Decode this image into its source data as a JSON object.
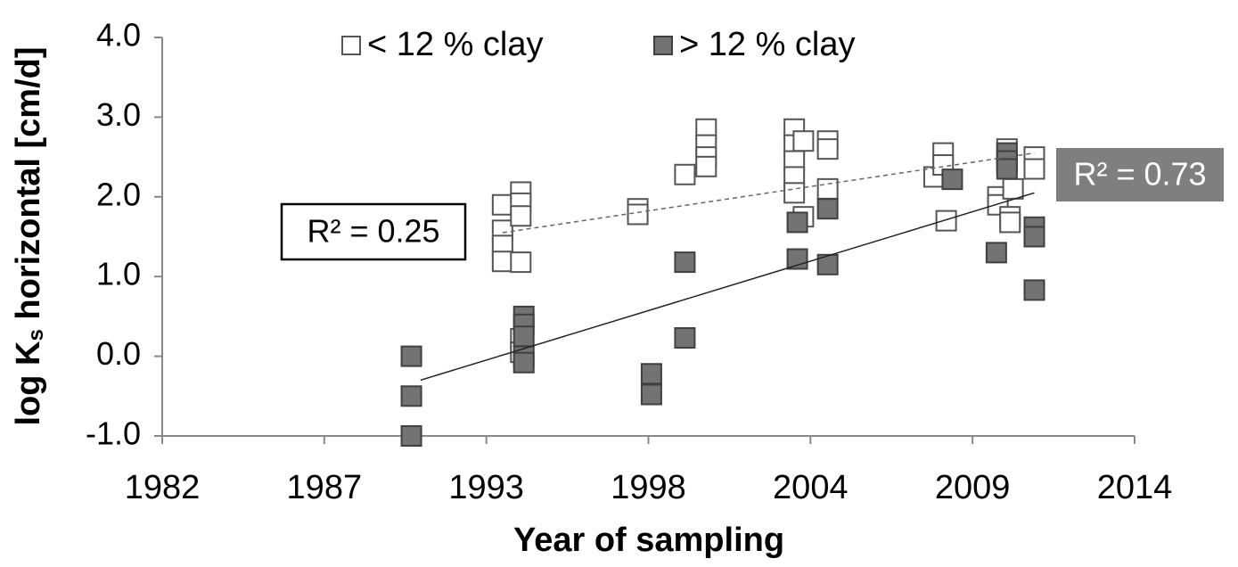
{
  "chart_data": {
    "type": "scatter",
    "x_label": "Year of sampling",
    "y_label": {
      "prefix": "log K",
      "sub": "s",
      "suffix": " horizontal [cm/d]"
    },
    "xlim": [
      1982,
      2014
    ],
    "xticks": [
      {
        "value": 1982,
        "label": "1982"
      },
      {
        "value": 1987.333,
        "label": "1987"
      },
      {
        "value": 1992.667,
        "label": "1993"
      },
      {
        "value": 1998,
        "label": "1998"
      },
      {
        "value": 2003.333,
        "label": "2004"
      },
      {
        "value": 2008.667,
        "label": "2009"
      },
      {
        "value": 2014,
        "label": "2014"
      }
    ],
    "ylim": [
      -1,
      4
    ],
    "yticks": [
      {
        "value": -1,
        "label": "-1.0"
      },
      {
        "value": 0,
        "label": "0.0"
      },
      {
        "value": 1,
        "label": "1.0"
      },
      {
        "value": 2,
        "label": "2.0"
      },
      {
        "value": 3,
        "label": "3.0"
      },
      {
        "value": 4,
        "label": "4.0"
      }
    ],
    "grid": false,
    "legend": "top",
    "series": [
      {
        "name": "< 12 % clay",
        "color": "#ffffff",
        "stroke": "#555555",
        "x": [
          1993.2,
          1993.2,
          1993.2,
          1993.2,
          1993.8,
          1993.8,
          1993.8,
          1993.8,
          1993.8,
          1993.8,
          1997.65,
          1997.65,
          1999.2,
          1999.9,
          1999.9,
          1999.9,
          1999.9,
          2002.8,
          2002.8,
          2002.8,
          2002.8,
          2002.8,
          2003.1,
          2003.1,
          2003.9,
          2003.9,
          2003.9,
          2007.4,
          2007.7,
          2007.7,
          2007.8,
          2009.5,
          2009.5,
          2009.8,
          2009.8,
          2009.9,
          2009.9,
          2010.0,
          2010.7,
          2010.7
        ],
        "values": [
          1.9,
          1.58,
          1.39,
          1.19,
          2.06,
          1.92,
          1.76,
          1.18,
          0.22,
          0.05,
          1.85,
          1.78,
          2.28,
          2.85,
          2.65,
          2.5,
          2.38,
          2.85,
          2.65,
          2.45,
          2.25,
          2.05,
          2.7,
          1.75,
          2.7,
          2.6,
          2.1,
          2.25,
          2.55,
          2.4,
          1.7,
          2.0,
          1.9,
          2.6,
          2.4,
          1.75,
          1.68,
          2.1,
          2.5,
          2.35
        ]
      },
      {
        "name": "> 12 % clay",
        "color": "#737373",
        "stroke": "#404040",
        "x": [
          1990.2,
          1990.2,
          1990.2,
          1993.9,
          1993.9,
          1993.9,
          1993.9,
          1993.9,
          1998.1,
          1998.1,
          1999.2,
          1999.2,
          2002.9,
          2002.9,
          2003.9,
          2003.9,
          2008.0,
          2009.45,
          2009.8,
          2009.8,
          2009.8,
          2010.7,
          2010.7,
          2010.7
        ],
        "values": [
          0.0,
          -0.5,
          -1.0,
          0.5,
          0.4,
          0.25,
          0.0,
          -0.08,
          -0.22,
          -0.48,
          1.18,
          0.23,
          1.68,
          1.22,
          1.85,
          1.15,
          2.22,
          1.3,
          2.55,
          2.45,
          2.35,
          1.62,
          1.5,
          0.83
        ]
      }
    ],
    "trendlines": [
      {
        "series": 0,
        "x": [
          1993.2,
          2010.7
        ],
        "values": [
          1.55,
          2.55
        ],
        "dash": true,
        "label": "R² = 0.25"
      },
      {
        "series": 1,
        "x": [
          1990.5,
          2010.7
        ],
        "values": [
          -0.3,
          2.05
        ],
        "dash": false,
        "label": "R² = 0.73"
      }
    ]
  }
}
